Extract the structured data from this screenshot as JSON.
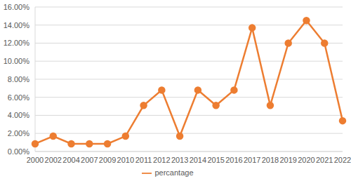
{
  "chart_data": {
    "type": "line",
    "categories": [
      "2000",
      "2002",
      "2004",
      "2007",
      "2009",
      "2010",
      "2011",
      "2012",
      "2013",
      "2014",
      "2015",
      "2016",
      "2017",
      "2018",
      "2019",
      "2020",
      "2021",
      "2022"
    ],
    "series": [
      {
        "name": "percantage",
        "color": "#ed7d31",
        "marker": "circle",
        "values": [
          0.85,
          1.7,
          0.85,
          0.85,
          0.85,
          1.7,
          5.1,
          6.8,
          1.7,
          6.8,
          5.1,
          6.8,
          13.7,
          5.1,
          12.0,
          14.5,
          12.0,
          3.4
        ]
      }
    ],
    "ylim": [
      0,
      16
    ],
    "yticks": [
      {
        "value": 0,
        "label": "0.00%"
      },
      {
        "value": 2,
        "label": "2.00%"
      },
      {
        "value": 4,
        "label": "4.00%"
      },
      {
        "value": 6,
        "label": "6.00%"
      },
      {
        "value": 8,
        "label": "8.00%"
      },
      {
        "value": 10,
        "label": "10.00%"
      },
      {
        "value": 12,
        "label": "12.00%"
      },
      {
        "value": 14,
        "label": "14.00%"
      },
      {
        "value": 16,
        "label": "16.00%"
      }
    ],
    "grid": true,
    "legend": "bottom"
  }
}
